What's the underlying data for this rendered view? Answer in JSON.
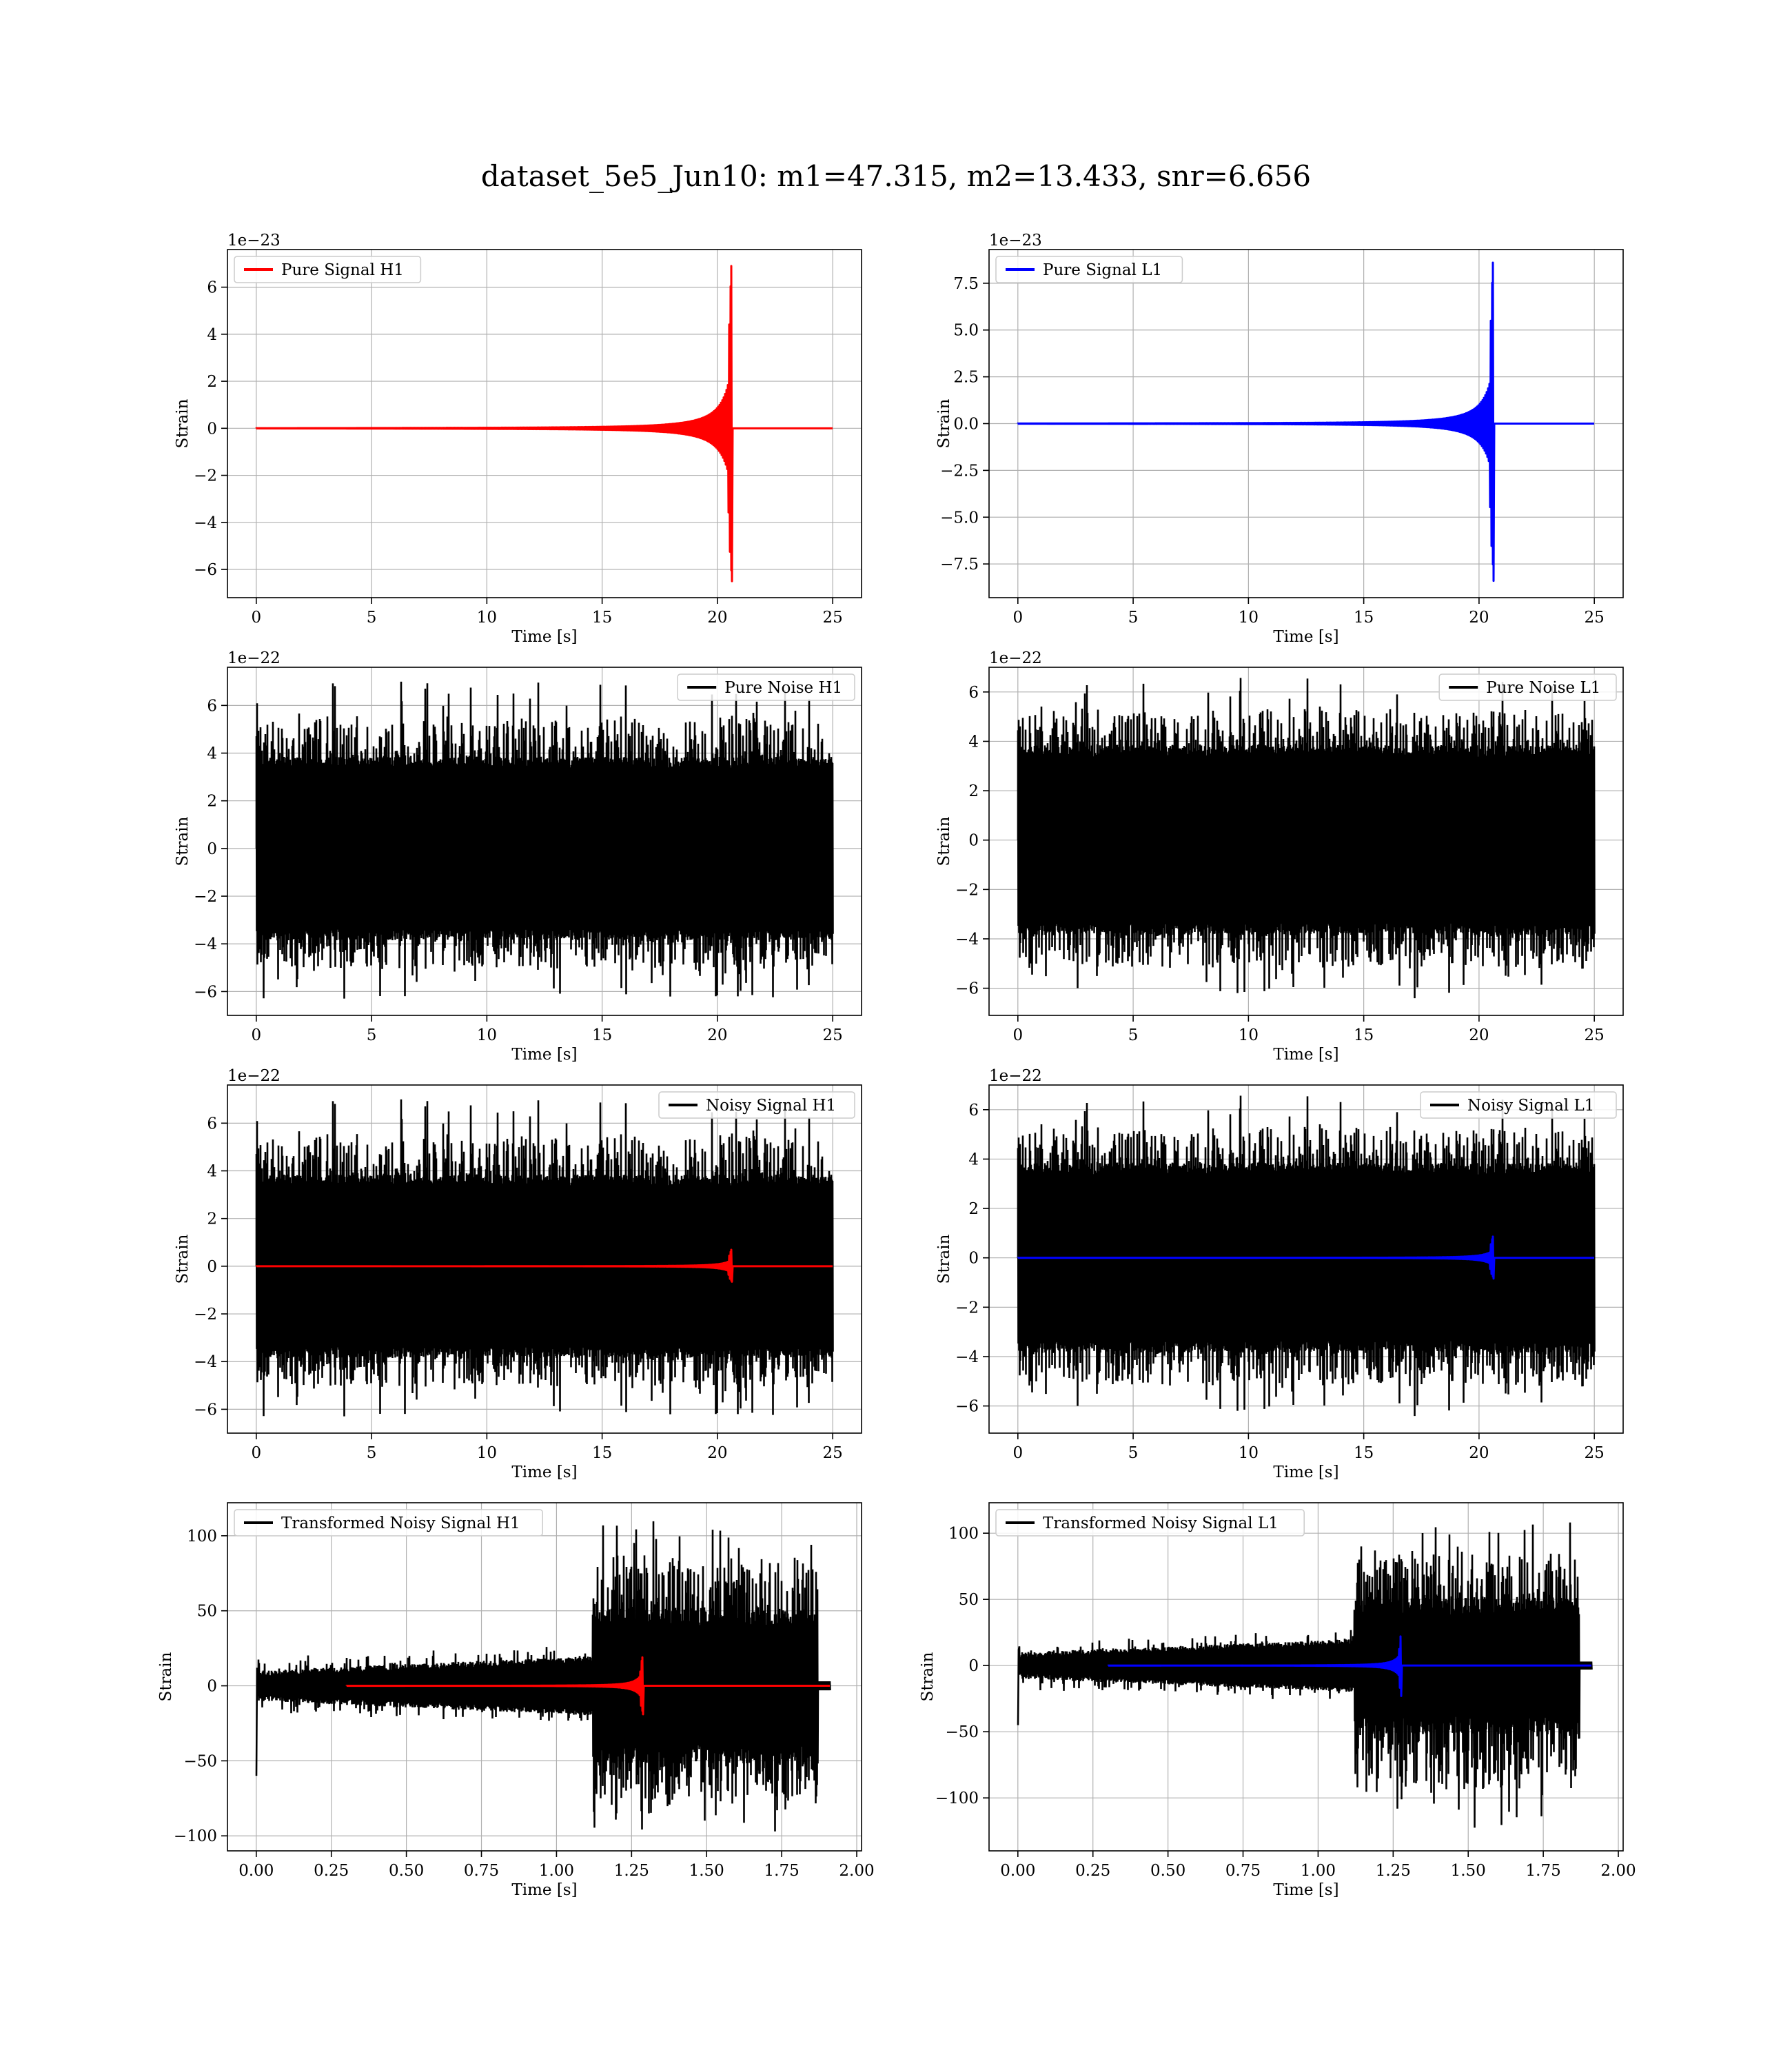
{
  "figure": {
    "suptitle": "dataset_5e5_Jun10: m1=47.315, m2=13.433, snr=6.656"
  },
  "colors": {
    "h1_signal": "#ff0000",
    "l1_signal": "#0000ff",
    "noise": "#000000",
    "grid": "#b0b0b0",
    "legend_border": "#cccccc"
  },
  "chart_data": [
    {
      "id": "pure-signal-h1",
      "type": "line",
      "xlabel": "Time [s]",
      "ylabel": "Strain",
      "offset_label": "1e−23",
      "xlim": [
        -1.25,
        26.25
      ],
      "ylim": [
        -7.2,
        7.6
      ],
      "xticks": [
        0,
        5,
        10,
        15,
        20,
        25
      ],
      "xtick_labels": [
        "0",
        "5",
        "10",
        "15",
        "20",
        "25"
      ],
      "yticks": [
        -6,
        -4,
        -2,
        0,
        2,
        4,
        6
      ],
      "ytick_labels": [
        "−6",
        "−4",
        "−2",
        "0",
        "2",
        "4",
        "6"
      ],
      "legend": {
        "position": "upper left",
        "entries": [
          {
            "label": "Pure Signal H1",
            "color": "#ff0000"
          }
        ]
      },
      "series": [
        {
          "name": "Pure Signal H1",
          "color": "#ff0000",
          "kind": "chirp",
          "params": {
            "t_start": 0,
            "t_merge": 20.6,
            "t_end": 25,
            "peak_max": 6.9,
            "peak_min": -6.5,
            "precursor": 2.6
          }
        }
      ]
    },
    {
      "id": "pure-signal-l1",
      "type": "line",
      "xlabel": "Time [s]",
      "ylabel": "Strain",
      "offset_label": "1e−23",
      "xlim": [
        -1.25,
        26.25
      ],
      "ylim": [
        -9.3,
        9.3
      ],
      "xticks": [
        0,
        5,
        10,
        15,
        20,
        25
      ],
      "xtick_labels": [
        "0",
        "5",
        "10",
        "15",
        "20",
        "25"
      ],
      "yticks": [
        -7.5,
        -5.0,
        -2.5,
        0.0,
        2.5,
        5.0,
        7.5
      ],
      "ytick_labels": [
        "−7.5",
        "−5.0",
        "−2.5",
        "0.0",
        "2.5",
        "5.0",
        "7.5"
      ],
      "legend": {
        "position": "upper left",
        "entries": [
          {
            "label": "Pure Signal L1",
            "color": "#0000ff"
          }
        ]
      },
      "series": [
        {
          "name": "Pure Signal L1",
          "color": "#0000ff",
          "kind": "chirp",
          "params": {
            "t_start": 0,
            "t_merge": 20.6,
            "t_end": 25,
            "peak_max": 8.6,
            "peak_min": -8.4,
            "precursor": 3.0
          }
        }
      ]
    },
    {
      "id": "pure-noise-h1",
      "type": "line",
      "xlabel": "Time [s]",
      "ylabel": "Strain",
      "offset_label": "1e−22",
      "xlim": [
        -1.25,
        26.25
      ],
      "ylim": [
        -7.0,
        7.6
      ],
      "xticks": [
        0,
        5,
        10,
        15,
        20,
        25
      ],
      "xtick_labels": [
        "0",
        "5",
        "10",
        "15",
        "20",
        "25"
      ],
      "yticks": [
        -6,
        -4,
        -2,
        0,
        2,
        4,
        6
      ],
      "ytick_labels": [
        "−6",
        "−4",
        "−2",
        "0",
        "2",
        "4",
        "6"
      ],
      "legend": {
        "position": "upper right",
        "entries": [
          {
            "label": "Pure Noise H1",
            "color": "#000000"
          }
        ]
      },
      "series": [
        {
          "name": "Pure Noise H1",
          "color": "#000000",
          "kind": "noise",
          "params": {
            "t_start": 0,
            "t_end": 25,
            "amp": 3.6,
            "max": 7.0,
            "min": -6.3,
            "seed": 11
          }
        }
      ]
    },
    {
      "id": "pure-noise-l1",
      "type": "line",
      "xlabel": "Time [s]",
      "ylabel": "Strain",
      "offset_label": "1e−22",
      "xlim": [
        -1.25,
        26.25
      ],
      "ylim": [
        -7.1,
        7.0
      ],
      "xticks": [
        0,
        5,
        10,
        15,
        20,
        25
      ],
      "xtick_labels": [
        "0",
        "5",
        "10",
        "15",
        "20",
        "25"
      ],
      "yticks": [
        -6,
        -4,
        -2,
        0,
        2,
        4,
        6
      ],
      "ytick_labels": [
        "−6",
        "−4",
        "−2",
        "0",
        "2",
        "4",
        "6"
      ],
      "legend": {
        "position": "upper right",
        "entries": [
          {
            "label": "Pure Noise L1",
            "color": "#000000"
          }
        ]
      },
      "series": [
        {
          "name": "Pure Noise L1",
          "color": "#000000",
          "kind": "noise",
          "params": {
            "t_start": 0,
            "t_end": 25,
            "amp": 3.6,
            "max": 6.6,
            "min": -6.5,
            "seed": 23
          }
        }
      ]
    },
    {
      "id": "noisy-signal-h1",
      "type": "line",
      "xlabel": "Time [s]",
      "ylabel": "Strain",
      "offset_label": "1e−22",
      "xlim": [
        -1.25,
        26.25
      ],
      "ylim": [
        -7.0,
        7.6
      ],
      "xticks": [
        0,
        5,
        10,
        15,
        20,
        25
      ],
      "xtick_labels": [
        "0",
        "5",
        "10",
        "15",
        "20",
        "25"
      ],
      "yticks": [
        -6,
        -4,
        -2,
        0,
        2,
        4,
        6
      ],
      "ytick_labels": [
        "−6",
        "−4",
        "−2",
        "0",
        "2",
        "4",
        "6"
      ],
      "legend": {
        "position": "upper right",
        "entries": [
          {
            "label": "Noisy Signal H1",
            "color": "#000000"
          }
        ]
      },
      "series": [
        {
          "name": "Noisy Signal H1",
          "color": "#000000",
          "kind": "noise",
          "params": {
            "t_start": 0,
            "t_end": 25,
            "amp": 3.6,
            "max": 7.0,
            "min": -6.3,
            "seed": 11
          }
        },
        {
          "name": "",
          "color": "#ff0000",
          "kind": "chirp",
          "params": {
            "t_start": 0,
            "t_merge": 20.6,
            "t_end": 25,
            "peak_max": 0.69,
            "peak_min": -0.65,
            "precursor": 0.26
          }
        }
      ]
    },
    {
      "id": "noisy-signal-l1",
      "type": "line",
      "xlabel": "Time [s]",
      "ylabel": "Strain",
      "offset_label": "1e−22",
      "xlim": [
        -1.25,
        26.25
      ],
      "ylim": [
        -7.1,
        7.0
      ],
      "xticks": [
        0,
        5,
        10,
        15,
        20,
        25
      ],
      "xtick_labels": [
        "0",
        "5",
        "10",
        "15",
        "20",
        "25"
      ],
      "yticks": [
        -6,
        -4,
        -2,
        0,
        2,
        4,
        6
      ],
      "ytick_labels": [
        "−6",
        "−4",
        "−2",
        "0",
        "2",
        "4",
        "6"
      ],
      "legend": {
        "position": "upper right",
        "entries": [
          {
            "label": "Noisy Signal L1",
            "color": "#000000"
          }
        ]
      },
      "series": [
        {
          "name": "Noisy Signal L1",
          "color": "#000000",
          "kind": "noise",
          "params": {
            "t_start": 0,
            "t_end": 25,
            "amp": 3.6,
            "max": 6.6,
            "min": -6.5,
            "seed": 23
          }
        },
        {
          "name": "",
          "color": "#0000ff",
          "kind": "chirp",
          "params": {
            "t_start": 0,
            "t_merge": 20.6,
            "t_end": 25,
            "peak_max": 0.86,
            "peak_min": -0.84,
            "precursor": 0.3
          }
        }
      ]
    },
    {
      "id": "transformed-noisy-signal-h1",
      "type": "line",
      "xlabel": "Time [s]",
      "ylabel": "Strain",
      "offset_label": "",
      "xlim": [
        -0.096,
        2.016
      ],
      "ylim": [
        -110,
        122
      ],
      "xticks": [
        0,
        0.25,
        0.5,
        0.75,
        1.0,
        1.25,
        1.5,
        1.75,
        2.0
      ],
      "xtick_labels": [
        "0.00",
        "0.25",
        "0.50",
        "0.75",
        "1.00",
        "1.25",
        "1.50",
        "1.75",
        "2.00"
      ],
      "yticks": [
        -100,
        -50,
        0,
        50,
        100
      ],
      "ytick_labels": [
        "−100",
        "−50",
        "0",
        "50",
        "100"
      ],
      "legend": {
        "position": "upper left",
        "entries": [
          {
            "label": "Transformed Noisy Signal H1",
            "color": "#000000"
          }
        ]
      },
      "series": [
        {
          "name": "Transformed Noisy Signal H1",
          "color": "#000000",
          "kind": "whitened",
          "params": {
            "t_start": 0,
            "t_step": 1.12,
            "t_end": 1.87,
            "t_tail": 1.91,
            "amp_lo": 6,
            "amp_hi": 45,
            "max": 113,
            "min": -98,
            "spike": -60,
            "seed": 7
          }
        },
        {
          "name": "",
          "color": "#ff0000",
          "kind": "chirp",
          "params": {
            "t_start": 0.3,
            "t_merge": 1.285,
            "t_end": 1.91,
            "peak_max": 19,
            "peak_min": -19,
            "precursor": 9
          }
        }
      ]
    },
    {
      "id": "transformed-noisy-signal-l1",
      "type": "line",
      "xlabel": "Time [s]",
      "ylabel": "Strain",
      "offset_label": "",
      "xlim": [
        -0.096,
        2.016
      ],
      "ylim": [
        -140,
        123
      ],
      "xticks": [
        0,
        0.25,
        0.5,
        0.75,
        1.0,
        1.25,
        1.5,
        1.75,
        2.0
      ],
      "xtick_labels": [
        "0.00",
        "0.25",
        "0.50",
        "0.75",
        "1.00",
        "1.25",
        "1.50",
        "1.75",
        "2.00"
      ],
      "yticks": [
        -100,
        -50,
        0,
        50,
        100
      ],
      "ytick_labels": [
        "−100",
        "−50",
        "0",
        "50",
        "100"
      ],
      "legend": {
        "position": "upper left",
        "entries": [
          {
            "label": "Transformed Noisy Signal L1",
            "color": "#000000"
          }
        ]
      },
      "series": [
        {
          "name": "Transformed Noisy Signal L1",
          "color": "#000000",
          "kind": "whitened",
          "params": {
            "t_start": 0,
            "t_step": 1.12,
            "t_end": 1.87,
            "t_tail": 1.91,
            "amp_lo": 6,
            "amp_hi": 45,
            "max": 110,
            "min": -128,
            "spike": -45,
            "seed": 19
          }
        },
        {
          "name": "",
          "color": "#0000ff",
          "kind": "chirp",
          "params": {
            "t_start": 0.3,
            "t_merge": 1.275,
            "t_end": 1.91,
            "peak_max": 22,
            "peak_min": -23,
            "precursor": 10
          }
        }
      ]
    }
  ]
}
